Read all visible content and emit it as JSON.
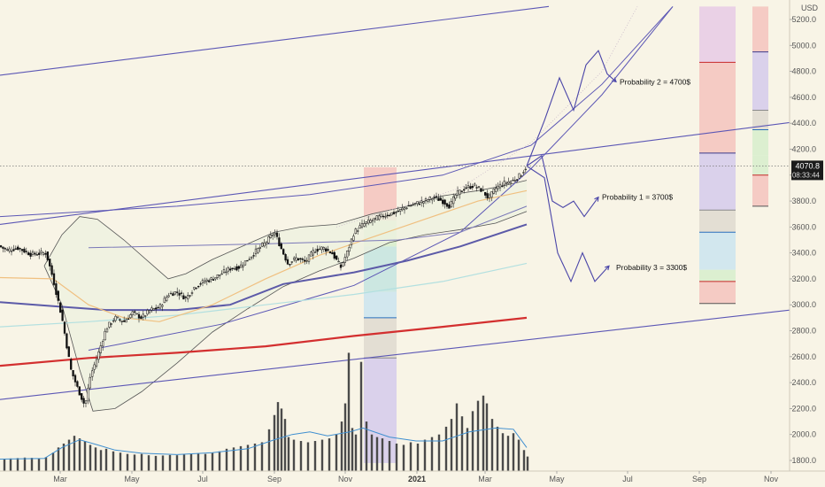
{
  "chart_data": {
    "type": "candlestick",
    "currency_label": "USD",
    "y_ticks": [
      1800,
      2000,
      2200,
      2400,
      2600,
      2800,
      3000,
      3200,
      3400,
      3600,
      3800,
      4000,
      4200,
      4400,
      4600,
      4800,
      5000,
      5200
    ],
    "ylim": [
      1735,
      5300
    ],
    "x_tick_labels": [
      "Mar",
      "May",
      "Jul",
      "Sep",
      "Nov",
      "2021",
      "Mar",
      "May",
      "Jul",
      "Sep",
      "Nov"
    ],
    "last_price": "4070.8",
    "countdown": "08:33:44",
    "price_path": [
      [
        0,
        3450
      ],
      [
        8,
        3420
      ],
      [
        20,
        3440
      ],
      [
        35,
        3390
      ],
      [
        52,
        3400
      ],
      [
        60,
        3200
      ],
      [
        70,
        2900
      ],
      [
        80,
        2500
      ],
      [
        88,
        2350
      ],
      [
        96,
        2220
      ],
      [
        102,
        2450
      ],
      [
        110,
        2600
      ],
      [
        120,
        2820
      ],
      [
        130,
        2900
      ],
      [
        140,
        2870
      ],
      [
        150,
        2940
      ],
      [
        160,
        2900
      ],
      [
        170,
        2960
      ],
      [
        180,
        2980
      ],
      [
        190,
        3080
      ],
      [
        200,
        3100
      ],
      [
        210,
        3050
      ],
      [
        220,
        3140
      ],
      [
        230,
        3180
      ],
      [
        240,
        3200
      ],
      [
        250,
        3240
      ],
      [
        260,
        3280
      ],
      [
        270,
        3290
      ],
      [
        280,
        3350
      ],
      [
        290,
        3420
      ],
      [
        300,
        3480
      ],
      [
        310,
        3560
      ],
      [
        318,
        3430
      ],
      [
        325,
        3320
      ],
      [
        335,
        3360
      ],
      [
        345,
        3330
      ],
      [
        355,
        3420
      ],
      [
        365,
        3440
      ],
      [
        375,
        3400
      ],
      [
        385,
        3290
      ],
      [
        392,
        3400
      ],
      [
        400,
        3560
      ],
      [
        410,
        3620
      ],
      [
        420,
        3650
      ],
      [
        430,
        3680
      ],
      [
        440,
        3700
      ],
      [
        450,
        3720
      ],
      [
        460,
        3760
      ],
      [
        470,
        3780
      ],
      [
        480,
        3800
      ],
      [
        490,
        3830
      ],
      [
        500,
        3800
      ],
      [
        508,
        3760
      ],
      [
        515,
        3850
      ],
      [
        525,
        3900
      ],
      [
        535,
        3920
      ],
      [
        545,
        3880
      ],
      [
        552,
        3820
      ],
      [
        560,
        3900
      ],
      [
        570,
        3940
      ],
      [
        580,
        3960
      ],
      [
        588,
        4000
      ],
      [
        595,
        4070
      ]
    ],
    "volume_bars": [
      [
        5,
        1810
      ],
      [
        12,
        1815
      ],
      [
        20,
        1818
      ],
      [
        28,
        1822
      ],
      [
        36,
        1820
      ],
      [
        44,
        1816
      ],
      [
        52,
        1825
      ],
      [
        60,
        1860
      ],
      [
        66,
        1900
      ],
      [
        72,
        1930
      ],
      [
        78,
        1960
      ],
      [
        84,
        1990
      ],
      [
        90,
        1970
      ],
      [
        96,
        1950
      ],
      [
        102,
        1920
      ],
      [
        108,
        1900
      ],
      [
        114,
        1880
      ],
      [
        120,
        1890
      ],
      [
        128,
        1870
      ],
      [
        136,
        1860
      ],
      [
        144,
        1850
      ],
      [
        152,
        1845
      ],
      [
        160,
        1850
      ],
      [
        168,
        1840
      ],
      [
        176,
        1835
      ],
      [
        184,
        1838
      ],
      [
        192,
        1842
      ],
      [
        200,
        1840
      ],
      [
        208,
        1845
      ],
      [
        216,
        1850
      ],
      [
        224,
        1855
      ],
      [
        232,
        1850
      ],
      [
        240,
        1860
      ],
      [
        248,
        1870
      ],
      [
        256,
        1890
      ],
      [
        264,
        1900
      ],
      [
        272,
        1910
      ],
      [
        280,
        1920
      ],
      [
        288,
        1930
      ],
      [
        296,
        1940
      ],
      [
        304,
        2040
      ],
      [
        310,
        2150
      ],
      [
        314,
        2250
      ],
      [
        318,
        2200
      ],
      [
        322,
        2120
      ],
      [
        326,
        1980
      ],
      [
        332,
        1960
      ],
      [
        340,
        1950
      ],
      [
        348,
        1940
      ],
      [
        356,
        1950
      ],
      [
        364,
        1960
      ],
      [
        372,
        1970
      ],
      [
        380,
        2000
      ],
      [
        386,
        2100
      ],
      [
        390,
        2240
      ],
      [
        394,
        2630
      ],
      [
        398,
        2050
      ],
      [
        402,
        2000
      ],
      [
        408,
        2560
      ],
      [
        414,
        2100
      ],
      [
        420,
        2000
      ],
      [
        426,
        1980
      ],
      [
        432,
        1970
      ],
      [
        440,
        1950
      ],
      [
        448,
        1930
      ],
      [
        456,
        1920
      ],
      [
        464,
        1940
      ],
      [
        472,
        1930
      ],
      [
        480,
        1960
      ],
      [
        488,
        1980
      ],
      [
        496,
        2000
      ],
      [
        504,
        2060
      ],
      [
        510,
        2120
      ],
      [
        516,
        2240
      ],
      [
        522,
        2140
      ],
      [
        528,
        2050
      ],
      [
        534,
        2180
      ],
      [
        540,
        2260
      ],
      [
        546,
        2300
      ],
      [
        550,
        2240
      ],
      [
        556,
        2120
      ],
      [
        562,
        2060
      ],
      [
        568,
        2010
      ],
      [
        574,
        1990
      ],
      [
        580,
        2010
      ],
      [
        586,
        1960
      ],
      [
        592,
        1880
      ],
      [
        596,
        1830
      ]
    ],
    "volume_ma": [
      [
        0,
        1810
      ],
      [
        50,
        1815
      ],
      [
        70,
        1900
      ],
      [
        90,
        1960
      ],
      [
        110,
        1920
      ],
      [
        130,
        1880
      ],
      [
        160,
        1855
      ],
      [
        200,
        1845
      ],
      [
        240,
        1860
      ],
      [
        280,
        1890
      ],
      [
        310,
        1960
      ],
      [
        330,
        2000
      ],
      [
        350,
        2020
      ],
      [
        370,
        1990
      ],
      [
        395,
        2020
      ],
      [
        410,
        2050
      ],
      [
        440,
        1980
      ],
      [
        470,
        1950
      ],
      [
        500,
        1950
      ],
      [
        530,
        2020
      ],
      [
        560,
        2050
      ],
      [
        580,
        2040
      ],
      [
        595,
        1900
      ]
    ],
    "channel_lines": [
      {
        "name": "upper-trend",
        "from": [
          0,
          4770
        ],
        "to": [
          620,
          5300
        ]
      },
      {
        "name": "mid-trend",
        "from": [
          0,
          3620
        ],
        "to": [
          932,
          4440
        ]
      },
      {
        "name": "lower-trend",
        "from": [
          0,
          2270
        ],
        "to": [
          932,
          2990
        ]
      }
    ],
    "curved_lines": [
      [
        [
          0,
          3680
        ],
        [
          200,
          3760
        ],
        [
          350,
          3850
        ],
        [
          500,
          4000
        ],
        [
          600,
          4230
        ],
        [
          680,
          4700
        ],
        [
          760,
          5300
        ]
      ],
      [
        [
          100,
          2650
        ],
        [
          250,
          2850
        ],
        [
          400,
          3150
        ],
        [
          520,
          3560
        ],
        [
          600,
          4050
        ],
        [
          680,
          4620
        ],
        [
          760,
          5300
        ]
      ]
    ],
    "bollinger_upper": [
      [
        50,
        3300
      ],
      [
        70,
        3540
      ],
      [
        90,
        3680
      ],
      [
        110,
        3660
      ],
      [
        140,
        3500
      ],
      [
        170,
        3320
      ],
      [
        190,
        3200
      ],
      [
        210,
        3240
      ],
      [
        240,
        3350
      ],
      [
        280,
        3470
      ],
      [
        310,
        3560
      ],
      [
        340,
        3600
      ],
      [
        380,
        3620
      ],
      [
        420,
        3700
      ],
      [
        460,
        3760
      ],
      [
        500,
        3840
      ],
      [
        540,
        3880
      ],
      [
        570,
        3920
      ],
      [
        595,
        3960
      ]
    ],
    "bollinger_lower": [
      [
        50,
        3300
      ],
      [
        70,
        3000
      ],
      [
        90,
        2500
      ],
      [
        105,
        2180
      ],
      [
        130,
        2200
      ],
      [
        160,
        2330
      ],
      [
        200,
        2550
      ],
      [
        240,
        2790
      ],
      [
        280,
        2970
      ],
      [
        320,
        3140
      ],
      [
        360,
        3260
      ],
      [
        400,
        3360
      ],
      [
        440,
        3480
      ],
      [
        480,
        3540
      ],
      [
        520,
        3580
      ],
      [
        560,
        3630
      ],
      [
        595,
        3720
      ]
    ],
    "ma_series": [
      {
        "name": "ma-red",
        "color": "#d32f2f",
        "points": [
          [
            0,
            2530
          ],
          [
            100,
            2590
          ],
          [
            200,
            2630
          ],
          [
            300,
            2680
          ],
          [
            400,
            2760
          ],
          [
            500,
            2830
          ],
          [
            595,
            2900
          ]
        ]
      },
      {
        "name": "ma-blue",
        "color": "#5c5aa8",
        "points": [
          [
            0,
            3020
          ],
          [
            60,
            2990
          ],
          [
            120,
            2960
          ],
          [
            200,
            2960
          ],
          [
            260,
            3000
          ],
          [
            320,
            3160
          ],
          [
            400,
            3250
          ],
          [
            460,
            3340
          ],
          [
            520,
            3450
          ],
          [
            595,
            3620
          ]
        ]
      },
      {
        "name": "ma-cyan",
        "color": "#b3e0e0",
        "points": [
          [
            0,
            2830
          ],
          [
            100,
            2870
          ],
          [
            200,
            2920
          ],
          [
            300,
            3000
          ],
          [
            400,
            3080
          ],
          [
            500,
            3180
          ],
          [
            595,
            3320
          ]
        ]
      },
      {
        "name": "ma-orange",
        "color": "#f0c080",
        "points": [
          [
            0,
            3210
          ],
          [
            60,
            3200
          ],
          [
            100,
            3000
          ],
          [
            140,
            2900
          ],
          [
            180,
            2870
          ],
          [
            240,
            3000
          ],
          [
            300,
            3200
          ],
          [
            360,
            3380
          ],
          [
            420,
            3520
          ],
          [
            480,
            3660
          ],
          [
            540,
            3800
          ],
          [
            595,
            3880
          ]
        ]
      }
    ],
    "projection_boxes": [
      {
        "x1": 411,
        "x2": 448,
        "bands": [
          [
            4060,
            3650,
            "#f4c7c0"
          ],
          [
            3650,
            3450,
            "#d8eecd"
          ],
          [
            3450,
            3100,
            "#c7e6e0"
          ],
          [
            3100,
            2900,
            "#cde6ee"
          ],
          [
            2900,
            2590,
            "#e0dcd0"
          ],
          [
            2590,
            1780,
            "#d6cdeb"
          ]
        ],
        "lines": [
          {
            "y": 2900,
            "color": "#2a6ebb"
          },
          {
            "y": 2590,
            "color": "#8a8a8a"
          }
        ]
      },
      {
        "x1": 790,
        "x2": 831,
        "bands": [
          [
            5300,
            4870,
            "#e8cde6"
          ],
          [
            4870,
            4170,
            "#f4c7c0"
          ],
          [
            4170,
            3730,
            "#d6cdeb"
          ],
          [
            3730,
            3560,
            "#e0dcd0"
          ],
          [
            3560,
            3270,
            "#cde6ee"
          ],
          [
            3270,
            3180,
            "#d8eecd"
          ],
          [
            3180,
            3010,
            "#f4c7c0"
          ]
        ],
        "lines": [
          {
            "y": 4870,
            "color": "#c62828"
          },
          {
            "y": 4170,
            "color": "#3a3a8a"
          },
          {
            "y": 3730,
            "color": "#8a8a8a"
          },
          {
            "y": 3560,
            "color": "#2a6ebb"
          },
          {
            "y": 3180,
            "color": "#c62828"
          },
          {
            "y": 3010,
            "color": "#555"
          }
        ]
      },
      {
        "x1": 850,
        "x2": 868,
        "bands": [
          [
            5300,
            4950,
            "#f4c7c0"
          ],
          [
            4950,
            4500,
            "#d6cdeb"
          ],
          [
            4500,
            4350,
            "#e0dcd0"
          ],
          [
            4350,
            4150,
            "#d8eecd"
          ],
          [
            4150,
            4000,
            "#d8eecd"
          ],
          [
            4000,
            3760,
            "#f4c7c0"
          ]
        ],
        "lines": [
          {
            "y": 4950,
            "color": "#3a3a8a"
          },
          {
            "y": 4500,
            "color": "#8a8a8a"
          },
          {
            "y": 4350,
            "color": "#2a6ebb"
          },
          {
            "y": 4000,
            "color": "#c62828"
          },
          {
            "y": 3760,
            "color": "#555"
          }
        ]
      }
    ],
    "scenario_paths": [
      {
        "label": "Probability 2 = 4700$",
        "points": [
          [
            595,
            4070
          ],
          [
            615,
            4420
          ],
          [
            632,
            4750
          ],
          [
            648,
            4500
          ],
          [
            662,
            4850
          ],
          [
            676,
            4960
          ],
          [
            686,
            4780
          ],
          [
            696,
            4720
          ]
        ],
        "label_at": [
          700,
          4720
        ]
      },
      {
        "label": "Probability 1 = 3700$",
        "points": [
          [
            595,
            4070
          ],
          [
            612,
            4150
          ],
          [
            624,
            3800
          ],
          [
            636,
            3750
          ],
          [
            648,
            3800
          ],
          [
            660,
            3680
          ],
          [
            676,
            3830
          ]
        ],
        "label_at": [
          680,
          3830
        ]
      },
      {
        "label": "Probability 3 = 3300$",
        "points": [
          [
            595,
            4070
          ],
          [
            615,
            3980
          ],
          [
            630,
            3400
          ],
          [
            645,
            3180
          ],
          [
            658,
            3400
          ],
          [
            672,
            3180
          ],
          [
            688,
            3300
          ]
        ],
        "label_at": [
          696,
          3290
        ]
      }
    ]
  }
}
